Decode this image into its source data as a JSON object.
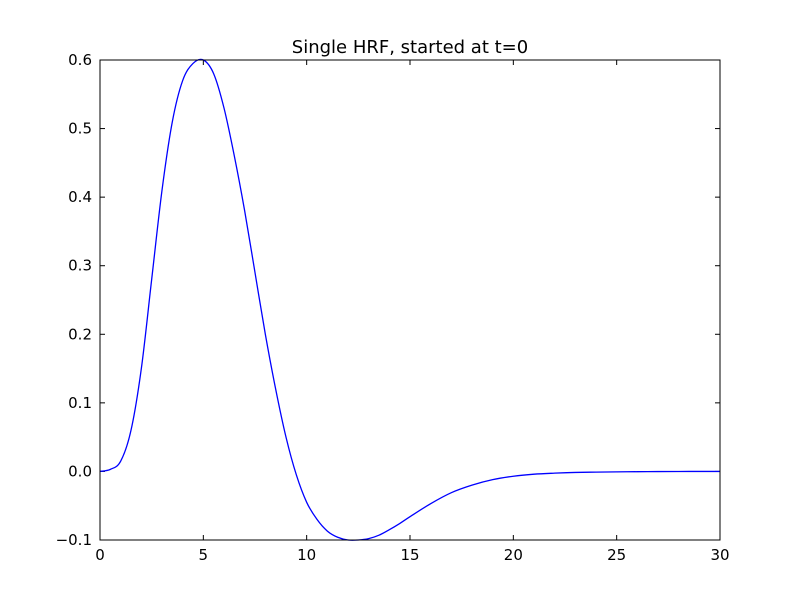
{
  "chart_data": {
    "type": "line",
    "title": "Single HRF, started at t=0",
    "xlabel": "",
    "ylabel": "",
    "xlim": [
      0,
      30
    ],
    "ylim": [
      -0.1,
      0.6
    ],
    "xticks": [
      0,
      5,
      10,
      15,
      20,
      25,
      30
    ],
    "xtick_labels": [
      "0",
      "5",
      "10",
      "15",
      "20",
      "25",
      "30"
    ],
    "yticks": [
      -0.1,
      0.0,
      0.1,
      0.2,
      0.3,
      0.4,
      0.5,
      0.6
    ],
    "ytick_labels": [
      "−0.1",
      "0.0",
      "0.1",
      "0.2",
      "0.3",
      "0.4",
      "0.5",
      "0.6"
    ],
    "grid": false,
    "legend": "none",
    "series": [
      {
        "color": "#0000ff",
        "x": [
          0,
          0.5,
          1,
          1.5,
          2,
          2.5,
          3,
          3.5,
          4,
          4.5,
          5,
          5.5,
          6,
          6.5,
          7,
          7.5,
          8,
          8.5,
          9,
          9.5,
          10,
          10.5,
          11,
          11.5,
          12,
          12.5,
          13,
          13.5,
          14,
          14.5,
          15,
          16,
          17,
          18,
          19,
          20,
          21,
          22,
          23,
          24,
          25,
          26,
          27,
          28,
          29,
          30
        ],
        "y": [
          0.0,
          0.003,
          0.015,
          0.06,
          0.15,
          0.28,
          0.41,
          0.51,
          0.57,
          0.595,
          0.6,
          0.58,
          0.53,
          0.46,
          0.38,
          0.29,
          0.2,
          0.12,
          0.05,
          -0.005,
          -0.045,
          -0.07,
          -0.087,
          -0.096,
          -0.1,
          -0.1,
          -0.098,
          -0.093,
          -0.085,
          -0.076,
          -0.066,
          -0.047,
          -0.031,
          -0.02,
          -0.012,
          -0.007,
          -0.004,
          -0.0025,
          -0.0015,
          -0.001,
          -0.0006,
          -0.0004,
          -0.0002,
          -0.0001,
          0.0,
          0.0
        ]
      }
    ]
  }
}
